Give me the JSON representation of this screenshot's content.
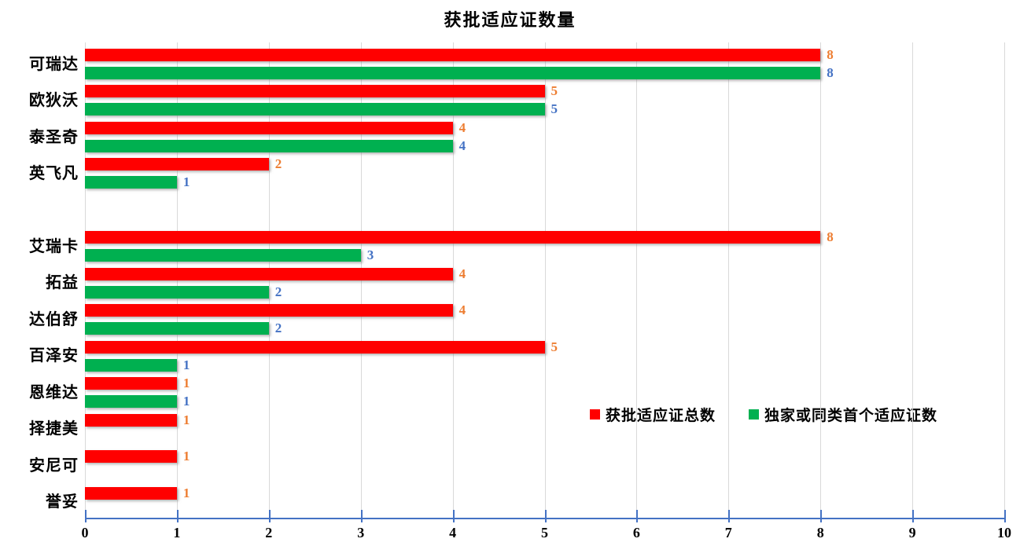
{
  "chart_data": {
    "type": "bar",
    "orientation": "horizontal",
    "title": "获批适应证数量",
    "xlabel": "",
    "ylabel": "",
    "xlim": [
      0,
      10
    ],
    "xticks": [
      0,
      1,
      2,
      3,
      4,
      5,
      6,
      7,
      8,
      9,
      10
    ],
    "grid": true,
    "legend_position": "inside-middle-right",
    "series": [
      {
        "name": "获批适应证总数",
        "color": "#ff0000",
        "label_color": "#ed7d31"
      },
      {
        "name": "独家或同类首个适应证数",
        "color": "#00b050",
        "label_color": "#4472c4"
      }
    ],
    "rows": [
      {
        "label": "可瑞达",
        "total": 8,
        "exclusive": 8
      },
      {
        "label": "欧狄沃",
        "total": 5,
        "exclusive": 5
      },
      {
        "label": "泰圣奇",
        "total": 4,
        "exclusive": 4
      },
      {
        "label": "英飞凡",
        "total": 2,
        "exclusive": 1
      },
      {
        "label": "",
        "total": null,
        "exclusive": null
      },
      {
        "label": "艾瑞卡",
        "total": 8,
        "exclusive": 3
      },
      {
        "label": "拓益",
        "total": 4,
        "exclusive": 2
      },
      {
        "label": "达伯舒",
        "total": 4,
        "exclusive": 2
      },
      {
        "label": "百泽安",
        "total": 5,
        "exclusive": 1
      },
      {
        "label": "恩维达",
        "total": 1,
        "exclusive": 1
      },
      {
        "label": "择捷美",
        "total": 1,
        "exclusive": null
      },
      {
        "label": "安尼可",
        "total": 1,
        "exclusive": null
      },
      {
        "label": "誉妥",
        "total": 1,
        "exclusive": null
      }
    ],
    "colors": {
      "gridline": "#d9d9d9",
      "axis_line": "#4472c4",
      "text": "#000000"
    }
  }
}
